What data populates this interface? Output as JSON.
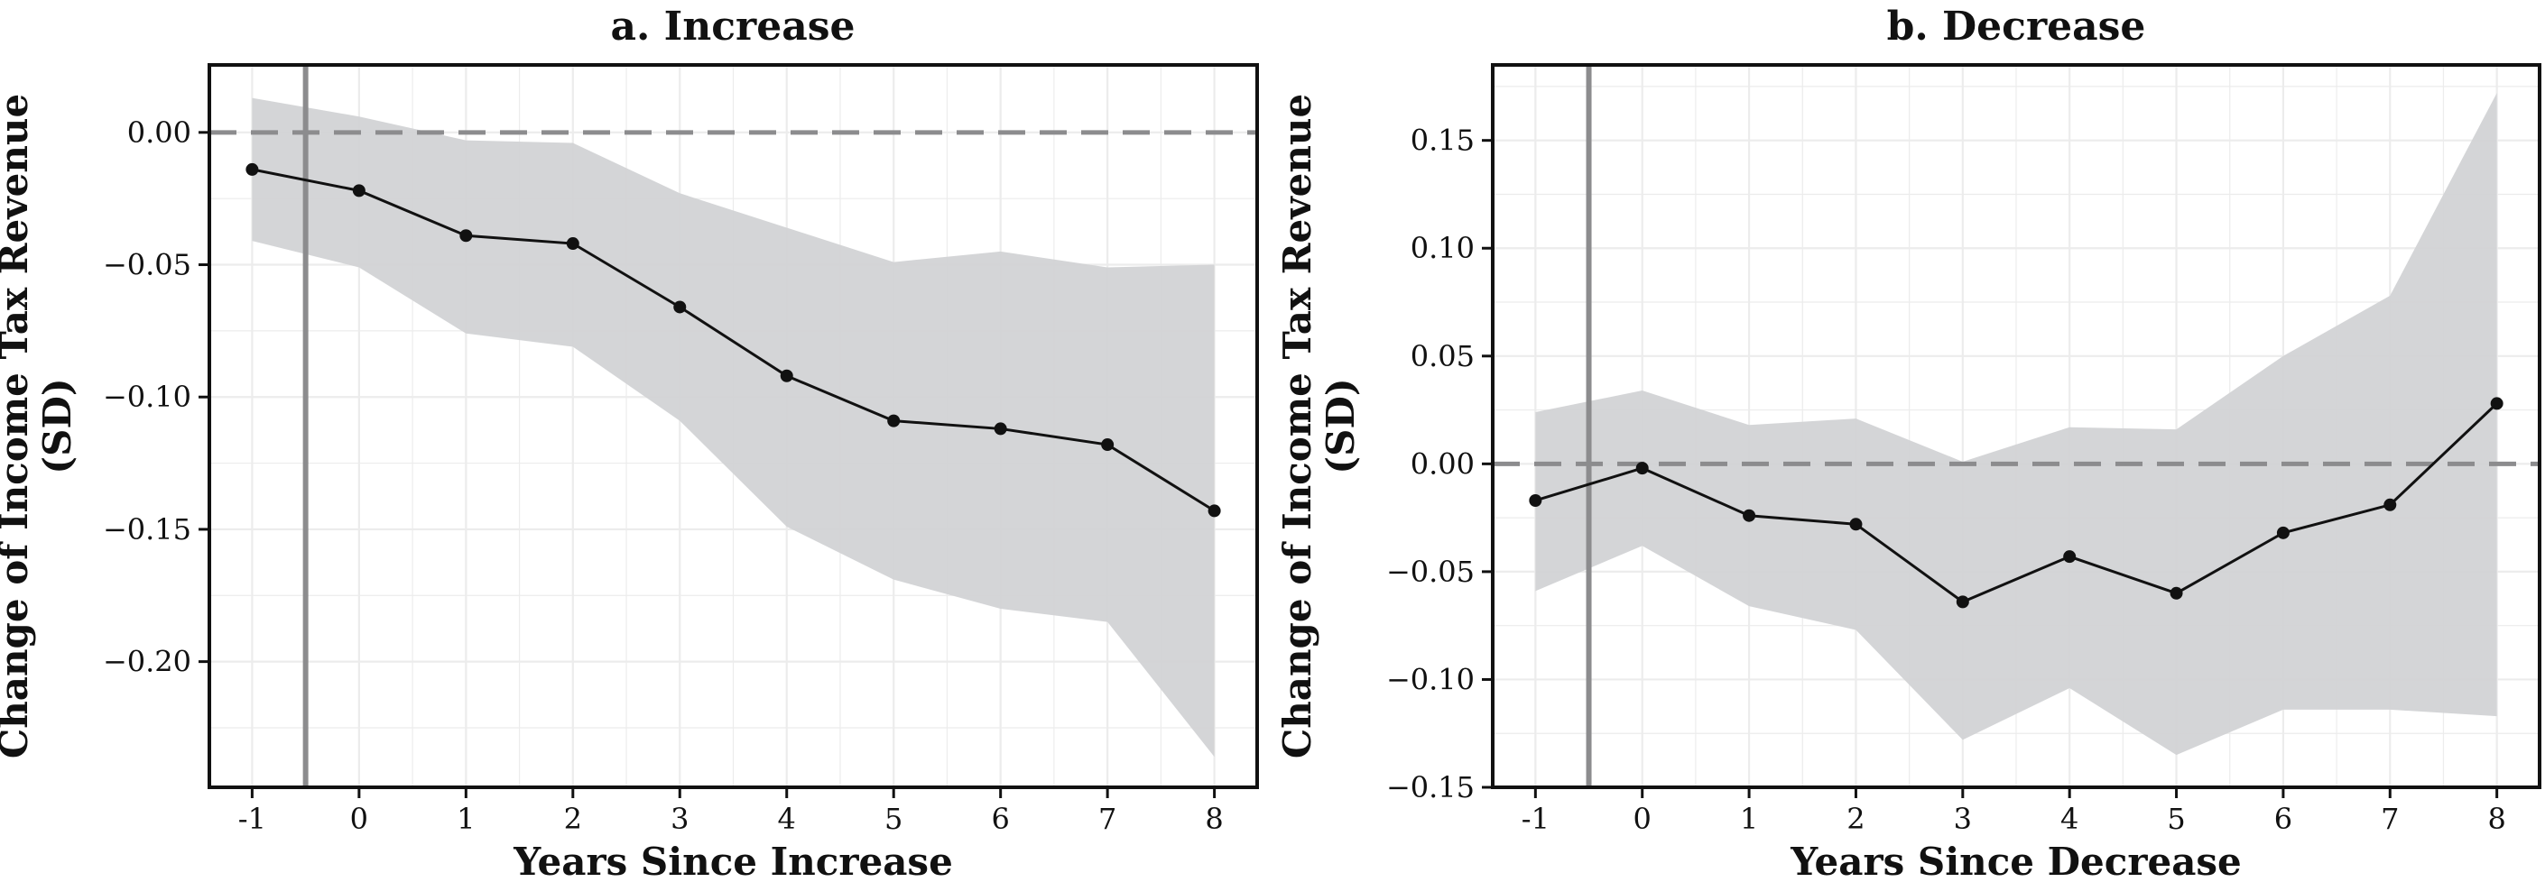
{
  "chart_data": [
    {
      "type": "line",
      "title": "a. Increase",
      "xlabel": "Years Since Increase",
      "ylabel": [
        "Change of Income Tax Revenue",
        "(SD)"
      ],
      "x": [
        -1,
        0,
        1,
        2,
        3,
        4,
        5,
        6,
        7,
        8
      ],
      "x_tick_labels": [
        "-1",
        "0",
        "1",
        "2",
        "3",
        "4",
        "5",
        "6",
        "7",
        "8"
      ],
      "xlim": [
        -1.4,
        8.4
      ],
      "ylim": [
        -0.2475,
        0.0255
      ],
      "y_ticks": [
        0.0,
        -0.05,
        -0.1,
        -0.15,
        -0.2
      ],
      "y_tick_labels": [
        "0.00",
        "−0.05",
        "−0.10",
        "−0.15",
        "−0.20"
      ],
      "estimate": [
        -0.014,
        -0.022,
        -0.039,
        -0.042,
        -0.066,
        -0.092,
        -0.109,
        -0.112,
        -0.118,
        -0.143
      ],
      "ci_upper": [
        0.013,
        0.006,
        -0.003,
        -0.004,
        -0.023,
        -0.036,
        -0.049,
        -0.045,
        -0.051,
        -0.05
      ],
      "ci_lower": [
        -0.041,
        -0.051,
        -0.076,
        -0.081,
        -0.109,
        -0.149,
        -0.169,
        -0.18,
        -0.185,
        -0.236
      ],
      "reference_vline_x": -0.5,
      "reference_hline_y": 0.0,
      "grid": true,
      "colors": {
        "line": "#111111",
        "band": "#d2d3d5",
        "vline": "#8c8c8e",
        "hline": "#8c8c8e",
        "grid": "#ececec"
      }
    },
    {
      "type": "line",
      "title": "b. Decrease",
      "xlabel": "Years Since Decrease",
      "ylabel": [
        "Change of Income Tax Revenue",
        "(SD)"
      ],
      "x": [
        -1,
        0,
        1,
        2,
        3,
        4,
        5,
        6,
        7,
        8
      ],
      "x_tick_labels": [
        "-1",
        "0",
        "1",
        "2",
        "3",
        "4",
        "5",
        "6",
        "7",
        "8"
      ],
      "xlim": [
        -1.4,
        8.4
      ],
      "ylim": [
        -0.15,
        0.185
      ],
      "y_ticks": [
        0.15,
        0.1,
        0.05,
        0.0,
        -0.05,
        -0.1,
        -0.15
      ],
      "y_tick_labels": [
        "0.15",
        "0.10",
        "0.05",
        "0.00",
        "−0.05",
        "−0.10",
        "−0.15"
      ],
      "estimate": [
        -0.017,
        -0.002,
        -0.024,
        -0.028,
        -0.064,
        -0.043,
        -0.06,
        -0.032,
        -0.019,
        0.028
      ],
      "ci_upper": [
        0.024,
        0.034,
        0.018,
        0.021,
        0.001,
        0.017,
        0.016,
        0.05,
        0.078,
        0.172
      ],
      "ci_lower": [
        -0.059,
        -0.038,
        -0.066,
        -0.077,
        -0.128,
        -0.104,
        -0.135,
        -0.114,
        -0.114,
        -0.117
      ],
      "reference_vline_x": -0.5,
      "reference_hline_y": 0.0,
      "grid": true,
      "colors": {
        "line": "#111111",
        "band": "#d2d3d5",
        "vline": "#8c8c8e",
        "hline": "#8c8c8e",
        "grid": "#ececec"
      }
    }
  ]
}
